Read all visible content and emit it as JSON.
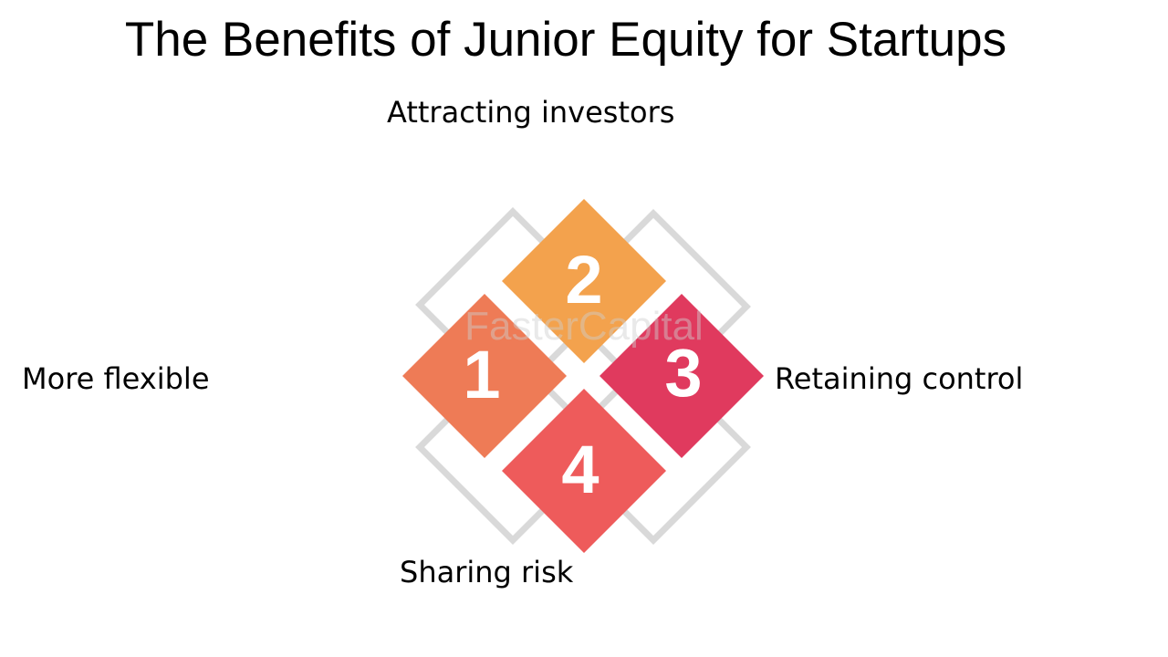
{
  "title": "The Benefits of Junior Equity for Startups",
  "labels": {
    "top": "Attracting investors",
    "left": "More flexible",
    "right": "Retaining control",
    "bottom": "Sharing risk"
  },
  "tiles": [
    {
      "number": "1",
      "color": "#ee7b56"
    },
    {
      "number": "2",
      "color": "#f3a24d"
    },
    {
      "number": "3",
      "color": "#e03a5e"
    },
    {
      "number": "4",
      "color": "#ee5b5b"
    }
  ],
  "outline_color": "#d9d9d9",
  "watermark": "FasterCapital"
}
